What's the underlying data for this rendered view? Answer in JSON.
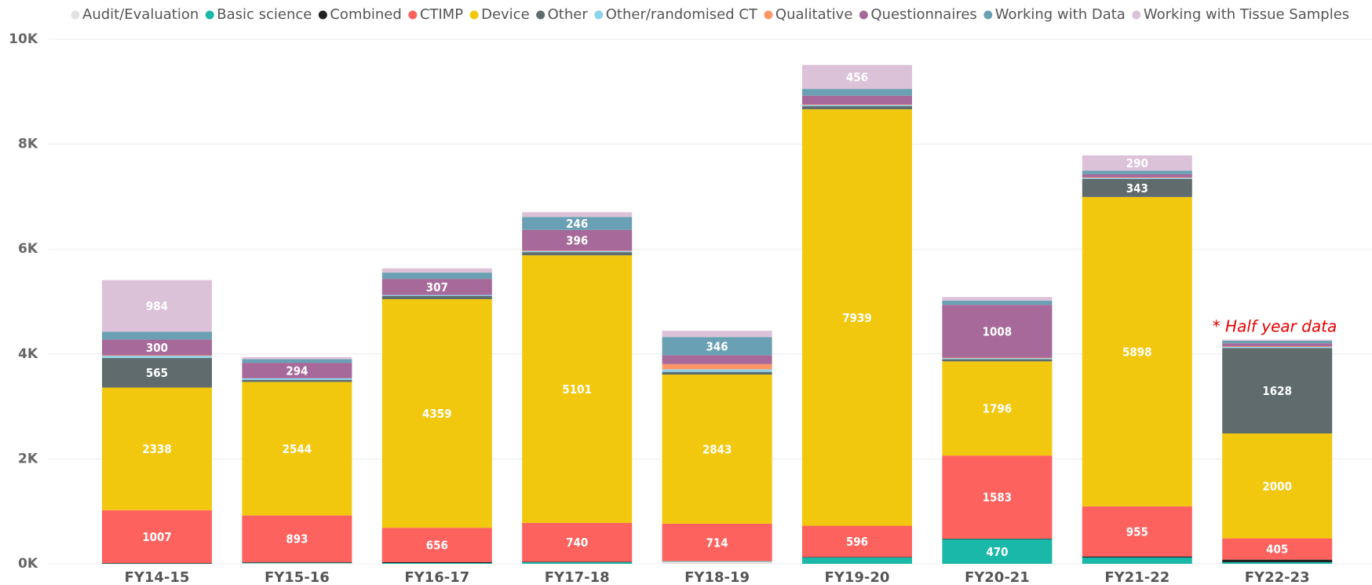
{
  "chart_data": {
    "type": "stacked_bar",
    "categories": [
      "FY14-15",
      "FY15-16",
      "FY16-17",
      "FY17-18",
      "FY18-19",
      "FY19-20",
      "FY20-21",
      "FY21-22",
      "FY22-23"
    ],
    "series": [
      {
        "name": "Audit/Evaluation",
        "color": "#e3e3e3",
        "values": [
          0,
          10,
          0,
          0,
          40,
          0,
          0,
          0,
          0
        ]
      },
      {
        "name": "Basic science",
        "color": "#1ab8a8",
        "values": [
          5,
          10,
          15,
          30,
          10,
          120,
          470,
          120,
          30
        ]
      },
      {
        "name": "Combined",
        "color": "#222222",
        "values": [
          10,
          10,
          15,
          10,
          0,
          10,
          10,
          20,
          50
        ]
      },
      {
        "name": "CTIMP",
        "color": "#fd625e",
        "values": [
          1007,
          893,
          656,
          740,
          714,
          596,
          1583,
          955,
          405
        ]
      },
      {
        "name": "Device",
        "color": "#f2c80f",
        "values": [
          2338,
          2544,
          4359,
          5101,
          2843,
          7939,
          1796,
          5898,
          2000
        ]
      },
      {
        "name": "Other",
        "color": "#5f6b6d",
        "values": [
          565,
          40,
          60,
          60,
          50,
          60,
          40,
          343,
          1628
        ]
      },
      {
        "name": "Other/randomised CT",
        "color": "#8ad4eb",
        "values": [
          40,
          30,
          20,
          20,
          50,
          20,
          20,
          20,
          20
        ]
      },
      {
        "name": "Qualitative",
        "color": "#fe9666",
        "values": [
          10,
          0,
          0,
          10,
          100,
          10,
          10,
          10,
          10
        ]
      },
      {
        "name": "Questionnaires",
        "color": "#a66999",
        "values": [
          300,
          294,
          307,
          396,
          170,
          170,
          1008,
          60,
          60
        ]
      },
      {
        "name": "Working with Data",
        "color": "#6aa0b3",
        "values": [
          150,
          70,
          120,
          246,
          346,
          130,
          80,
          70,
          50
        ]
      },
      {
        "name": "Working with Tissue Samples",
        "color": "#dcc2d8",
        "values": [
          984,
          40,
          80,
          90,
          120,
          456,
          70,
          290,
          20
        ]
      }
    ],
    "ylim": [
      0,
      10000
    ],
    "yticks": [
      {
        "value": 0,
        "label": "0K"
      },
      {
        "value": 2000,
        "label": "2K"
      },
      {
        "value": 4000,
        "label": "4K"
      },
      {
        "value": 6000,
        "label": "6K"
      },
      {
        "value": 8000,
        "label": "8K"
      },
      {
        "value": 10000,
        "label": "10K"
      }
    ],
    "grid": true,
    "legend": "top",
    "annotation": "* Half year data"
  }
}
